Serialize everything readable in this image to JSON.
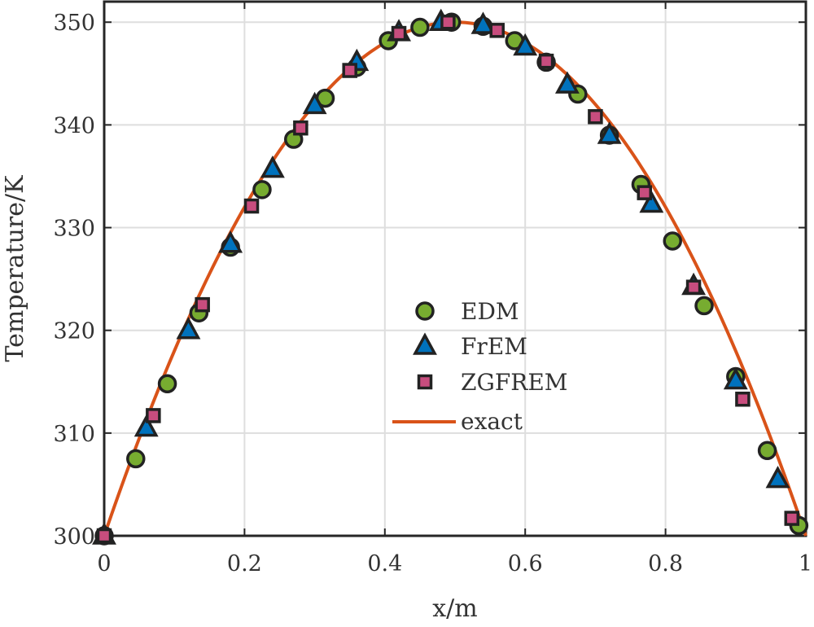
{
  "chart_data": {
    "type": "scatter",
    "title": "",
    "xlabel": "x/m",
    "ylabel": "Temperature/K",
    "xlim": [
      0,
      1
    ],
    "ylim": [
      300,
      352
    ],
    "grid": true,
    "legend_position": "center",
    "x_ticks": [
      0,
      0.2,
      0.4,
      0.6,
      0.8,
      1
    ],
    "x_tick_labels": [
      "0",
      "0.2",
      "0.4",
      "0.6",
      "0.8",
      "1"
    ],
    "y_ticks": [
      300,
      310,
      320,
      330,
      340,
      350
    ],
    "y_tick_labels": [
      "300",
      "310",
      "320",
      "330",
      "340",
      "350"
    ],
    "series": [
      {
        "name": "EDM",
        "marker": "circle",
        "color": "#77AC30",
        "x": [
          0,
          0.045,
          0.09,
          0.135,
          0.18,
          0.225,
          0.27,
          0.315,
          0.36,
          0.405,
          0.45,
          0.495,
          0.54,
          0.585,
          0.63,
          0.675,
          0.72,
          0.765,
          0.81,
          0.855,
          0.9,
          0.945,
          0.99
        ],
        "y": [
          300,
          307.5,
          314.8,
          321.7,
          328.1,
          333.7,
          338.6,
          342.6,
          345.6,
          348.2,
          349.5,
          350,
          349.6,
          348.2,
          346.1,
          343.0,
          339.0,
          334.2,
          328.7,
          322.4,
          315.5,
          308.3,
          301
        ]
      },
      {
        "name": "FrEM",
        "marker": "triangle",
        "color": "#0072BD",
        "x": [
          0,
          0.06,
          0.12,
          0.18,
          0.24,
          0.3,
          0.36,
          0.42,
          0.48,
          0.54,
          0.6,
          0.66,
          0.72,
          0.78,
          0.84,
          0.9,
          0.96
        ],
        "y": [
          300,
          310.5,
          320,
          328.4,
          335.7,
          341.9,
          346.1,
          349,
          350,
          349.7,
          347.6,
          343.9,
          339.0,
          332.3,
          324.3,
          315.1,
          305.5
        ]
      },
      {
        "name": "ZGFREM",
        "marker": "square",
        "color": "#C84D7E",
        "x": [
          0,
          0.07,
          0.14,
          0.21,
          0.28,
          0.35,
          0.42,
          0.49,
          0.56,
          0.63,
          0.7,
          0.77,
          0.84,
          0.91,
          0.98
        ],
        "y": [
          300,
          311.7,
          322.5,
          332.1,
          339.7,
          345.3,
          348.9,
          350,
          349.2,
          346.2,
          340.8,
          333.4,
          324.2,
          313.3,
          301.7
        ]
      }
    ],
    "curve": {
      "name": "exact",
      "color": "#D95319",
      "formula": "T = 300 + 200 * x * (1 - x)"
    }
  }
}
